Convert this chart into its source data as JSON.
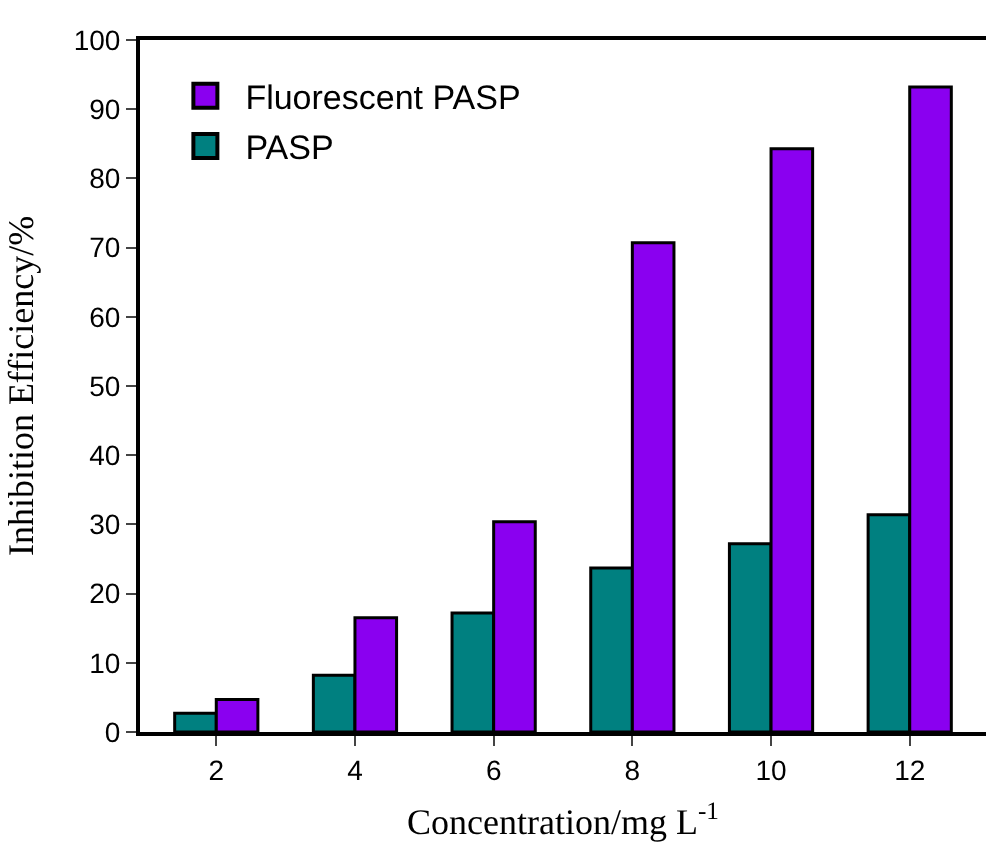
{
  "chart_data": {
    "type": "bar",
    "xlabel": "Concentration/mg L$^{-1}$",
    "ylabel": "Inhibition Efficiency/%",
    "categories": [
      "2",
      "4",
      "6",
      "8",
      "10",
      "12"
    ],
    "series": [
      {
        "name": "PASP",
        "color": "#008080",
        "values": [
          2.7,
          8.2,
          17.2,
          23.7,
          27.2,
          31.4
        ]
      },
      {
        "name": "Fluorescent PASP",
        "color": "#8a00f0",
        "values": [
          4.7,
          16.5,
          30.4,
          70.7,
          84.3,
          93.2
        ]
      }
    ],
    "ylim": [
      0,
      100
    ],
    "yticks": [
      0,
      10,
      20,
      30,
      40,
      50,
      60,
      70,
      80,
      90,
      100
    ],
    "legend": "top left"
  }
}
